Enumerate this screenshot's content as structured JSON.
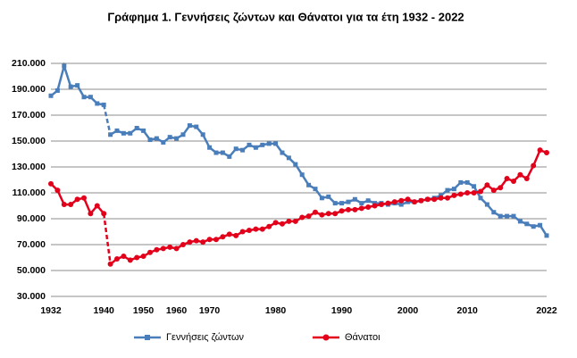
{
  "chart_data": {
    "type": "line",
    "title": "Γράφημα 1.  Γεννήσεις ζώντων και Θάνατοι για τα έτη 1932 - 2022",
    "categories": [
      "1932",
      null,
      null,
      null,
      null,
      null,
      null,
      null,
      "1940",
      null,
      null,
      null,
      null,
      null,
      "1950",
      null,
      null,
      null,
      null,
      "1960",
      null,
      null,
      null,
      null,
      "1970",
      null,
      null,
      null,
      null,
      null,
      null,
      null,
      null,
      null,
      "1980",
      null,
      null,
      null,
      null,
      null,
      null,
      null,
      null,
      null,
      "1990",
      null,
      null,
      null,
      null,
      null,
      null,
      null,
      null,
      null,
      "2000",
      null,
      null,
      null,
      null,
      null,
      null,
      null,
      null,
      "2010",
      null,
      null,
      null,
      null,
      null,
      null,
      null,
      null,
      null,
      null,
      null,
      "2022"
    ],
    "series": [
      {
        "name": "Γεννήσεις ζώντων",
        "color": "#4a7ebb",
        "marker": "square",
        "values": [
          185000,
          189000,
          208000,
          192000,
          193000,
          184000,
          184000,
          179000,
          178000,
          155000,
          158000,
          156000,
          156000,
          160000,
          158000,
          151000,
          152000,
          149000,
          153000,
          152000,
          155000,
          162000,
          161000,
          155000,
          145000,
          141000,
          141000,
          138000,
          144000,
          143000,
          147000,
          145000,
          147000,
          148000,
          148000,
          141000,
          137000,
          132000,
          124000,
          116000,
          113000,
          106000,
          107000,
          102000,
          102000,
          103000,
          105000,
          102000,
          104000,
          102000,
          102000,
          101000,
          102000,
          101000,
          103000,
          103000,
          104000,
          105000,
          106000,
          108000,
          112000,
          113000,
          118000,
          118000,
          115000,
          106000,
          101000,
          95000,
          92000,
          92000,
          92000,
          88000,
          86000,
          84000,
          85000,
          77000
        ]
      },
      {
        "name": "Θάνατοι",
        "color": "#e3001b",
        "marker": "circle",
        "values": [
          117000,
          112000,
          101000,
          101000,
          105000,
          106000,
          94000,
          100000,
          94000,
          55000,
          59000,
          61000,
          58000,
          60000,
          61000,
          64000,
          66000,
          67000,
          68000,
          67000,
          70000,
          72000,
          73000,
          72000,
          74000,
          74000,
          76000,
          78000,
          77000,
          80000,
          81000,
          82000,
          82000,
          84000,
          87000,
          86000,
          88000,
          88000,
          91000,
          92000,
          95000,
          93000,
          94000,
          94000,
          96000,
          97000,
          97000,
          98000,
          99000,
          100000,
          101000,
          102000,
          103000,
          104000,
          105000,
          103000,
          104000,
          105000,
          105000,
          106000,
          106000,
          108000,
          109000,
          110000,
          110000,
          111000,
          116000,
          112000,
          114000,
          121000,
          119000,
          124000,
          121000,
          131000,
          143000,
          141000
        ]
      }
    ],
    "dashed_gap": [
      8,
      9
    ],
    "ylim": [
      30000,
      210000
    ],
    "yticks": [
      {
        "value": 30000,
        "label": "30.000"
      },
      {
        "value": 50000,
        "label": "50.000"
      },
      {
        "value": 70000,
        "label": "70.000"
      },
      {
        "value": 90000,
        "label": "90.000"
      },
      {
        "value": 110000,
        "label": "110.000"
      },
      {
        "value": 130000,
        "label": "130.000"
      },
      {
        "value": 150000,
        "label": "150.000"
      },
      {
        "value": 170000,
        "label": "170.000"
      },
      {
        "value": 190000,
        "label": "190.000"
      },
      {
        "value": 210000,
        "label": "210.000"
      }
    ],
    "grid": true,
    "legend": "bottom"
  }
}
